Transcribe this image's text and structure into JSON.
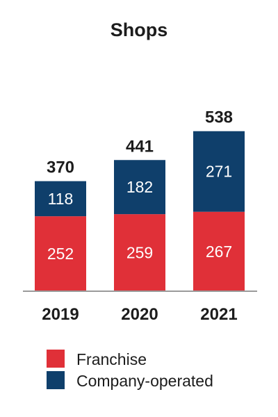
{
  "chart_data": {
    "type": "bar",
    "stacked": true,
    "title": "Shops",
    "categories": [
      "2019",
      "2020",
      "2021"
    ],
    "series": [
      {
        "name": "Franchise",
        "values": [
          252,
          259,
          267
        ],
        "color": "#e03038"
      },
      {
        "name": "Company-operated",
        "values": [
          118,
          182,
          271
        ],
        "color": "#0f3f6b"
      }
    ],
    "totals": [
      370,
      441,
      538
    ],
    "ylim": [
      0,
      600
    ],
    "grid": false,
    "legend_position": "bottom",
    "axis_color": "#9a9a9a"
  }
}
